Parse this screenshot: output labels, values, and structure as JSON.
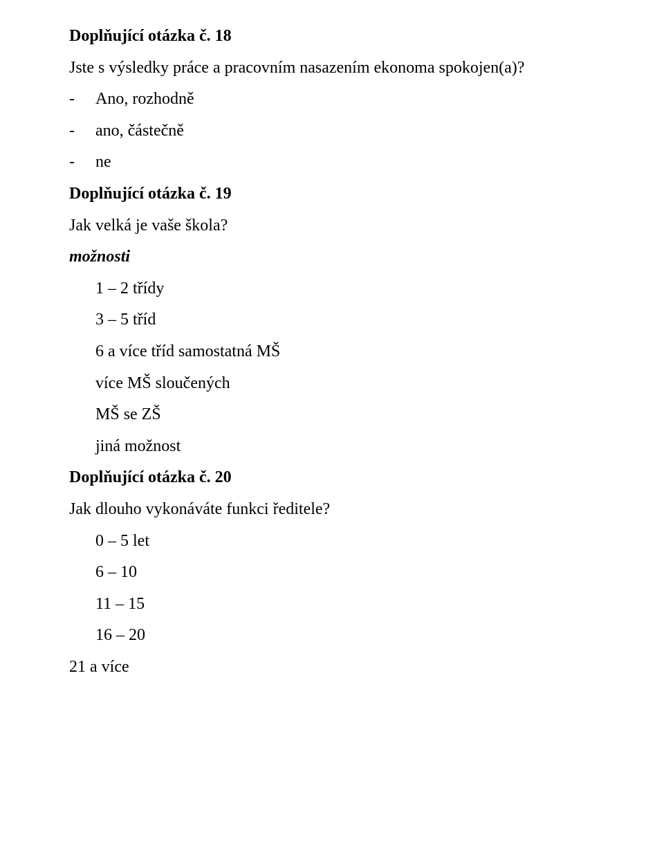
{
  "q18": {
    "heading": "Doplňující otázka č. 18",
    "prompt": "Jste s výsledky práce a pracovním nasazením ekonoma spokojen(a)?",
    "dash": "-",
    "opts": [
      "Ano, rozhodně",
      "ano, částečně",
      "ne"
    ]
  },
  "q19": {
    "heading": "Doplňující otázka č. 19",
    "prompt": "Jak velká je vaše škola?",
    "opts_label": "možnosti",
    "opts": [
      "1 – 2 třídy",
      "3 – 5 tříd",
      "6 a více tříd samostatná MŠ",
      "více MŠ sloučených",
      "MŠ se ZŠ",
      "jiná možnost"
    ]
  },
  "q20": {
    "heading": "Doplňující otázka č. 20",
    "prompt": "Jak dlouho vykonáváte funkci ředitele?",
    "opts": [
      "0 – 5 let",
      "6 – 10",
      "11 – 15",
      "16 – 20"
    ],
    "last": "21 a více"
  }
}
